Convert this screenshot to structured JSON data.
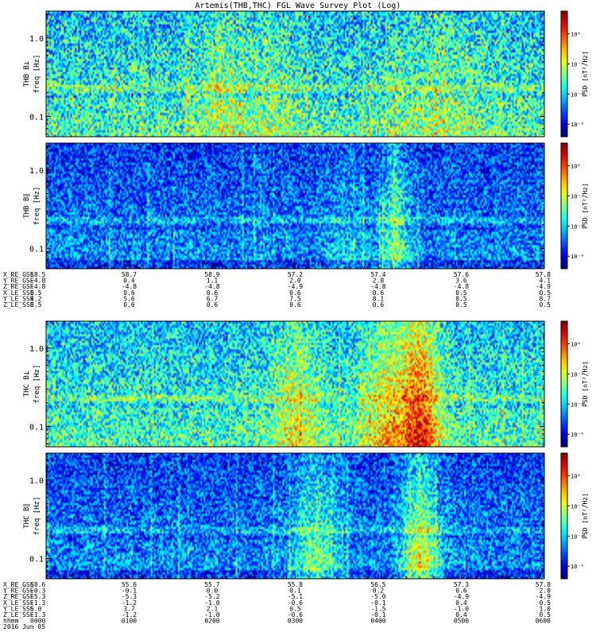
{
  "chart_data": {
    "type": "heatmap",
    "title": "Artemis(THB,THC) FGL Wave Survey Plot (Log)",
    "yscale": "log",
    "colorscale": "jet",
    "grid": false,
    "panels": [
      {
        "id": "thb-bperp",
        "ylabel_top": "THB B⊥",
        "ylabel_bottom": "freq [Hz]",
        "ylim": [
          0.055,
          2.2
        ],
        "yticks": [
          "1.0",
          "0.1"
        ],
        "yticks_values": [
          1.0,
          0.1
        ],
        "colorbar": {
          "label": "PSD [nT²/Hz]",
          "ticks": [
            "10⁰",
            "10⁻²",
            "10⁻⁴",
            "10⁻⁶"
          ]
        },
        "intensity": {
          "base": 0.38,
          "variance": 0.22,
          "bursts": [
            [
              0.35,
              0.05,
              0.15
            ],
            [
              0.45,
              0.05,
              0.1
            ],
            [
              0.78,
              0.1,
              0.1
            ]
          ]
        }
      },
      {
        "id": "thb-bpar",
        "ylabel_top": "THB B∥",
        "ylabel_bottom": "freq [Hz]",
        "ylim": [
          0.055,
          2.2
        ],
        "yticks": [
          "1.0",
          "0.1"
        ],
        "yticks_values": [
          1.0,
          0.1
        ],
        "colorbar": {
          "label": "PSD [nT²/Hz]",
          "ticks": [
            "10⁰",
            "10⁻²",
            "10⁻⁴",
            "10⁻⁶"
          ]
        },
        "intensity": {
          "base": 0.22,
          "variance": 0.18,
          "bursts": [
            [
              0.7,
              0.03,
              0.25
            ],
            [
              0.6,
              0.04,
              0.1
            ]
          ]
        }
      },
      {
        "id": "thc-bperp",
        "ylabel_top": "THC B⊥",
        "ylabel_bottom": "freq [Hz]",
        "ylim": [
          0.055,
          2.2
        ],
        "yticks": [
          "1.0",
          "0.1"
        ],
        "yticks_values": [
          1.0,
          0.1
        ],
        "colorbar": {
          "label": "PSD [nT²/Hz]",
          "ticks": [
            "10⁰",
            "10⁻²",
            "10⁻⁴",
            "10⁻⁶"
          ]
        },
        "intensity": {
          "base": 0.38,
          "variance": 0.2,
          "bursts": [
            [
              0.75,
              0.04,
              0.45
            ],
            [
              0.68,
              0.05,
              0.25
            ],
            [
              0.5,
              0.05,
              0.2
            ]
          ]
        }
      },
      {
        "id": "thc-bpar",
        "ylabel_top": "THC B∥",
        "ylabel_bottom": "freq [Hz]",
        "ylim": [
          0.055,
          2.2
        ],
        "yticks": [
          "1.0",
          "0.1"
        ],
        "yticks_values": [
          1.0,
          0.1
        ],
        "colorbar": {
          "label": "PSD [nT²/Hz]",
          "ticks": [
            "10⁰",
            "10⁻²",
            "10⁻⁴",
            "10⁻⁶"
          ]
        },
        "intensity": {
          "base": 0.22,
          "variance": 0.18,
          "bursts": [
            [
              0.75,
              0.04,
              0.35
            ],
            [
              0.54,
              0.05,
              0.25
            ]
          ]
        }
      }
    ],
    "ephemeris": [
      {
        "id": "thb",
        "rows": [
          {
            "label": "X_RE_GSE",
            "values": [
              "58.5",
              "58.7",
              "58.9",
              "57.2",
              "57.4",
              "57.6",
              "57.8"
            ]
          },
          {
            "label": "Y_RE_GSE",
            "values": [
              "-4.8",
              "0.4",
              "1.1",
              "2.0",
              "2.8",
              "3.6",
              "4.1"
            ]
          },
          {
            "label": "Z_RE_GSE",
            "values": [
              "-4.8",
              "-4.8",
              "-4.8",
              "-4.9",
              "-4.8",
              "-4.8",
              "-4.9"
            ]
          },
          {
            "label": "X_LE_SSE",
            "values": [
              "0.5",
              "0.6",
              "0.6",
              "0.6",
              "0.6",
              "0.5",
              "0.5"
            ]
          },
          {
            "label": "Y_LE_SSE",
            "values": [
              "4.2",
              "5.6",
              "6.7",
              "7.5",
              "8.1",
              "8.5",
              "8.7"
            ]
          },
          {
            "label": "Z_LE_SSE",
            "values": [
              "0.5",
              "0.6",
              "0.6",
              "0.6",
              "0.6",
              "0.5",
              "0.5"
            ]
          }
        ]
      },
      {
        "id": "thc",
        "rows": [
          {
            "label": "X_RE_GSE",
            "values": [
              "58.6",
              "55.6",
              "55.7",
              "55.8",
              "56.5",
              "57.3",
              "57.8"
            ]
          },
          {
            "label": "Y_RE_GSE",
            "values": [
              "-0.3",
              "-0.1",
              "0.0",
              "0.1",
              "0.2",
              "0.6",
              "2.0"
            ]
          },
          {
            "label": "Z_RE_GSE",
            "values": [
              "-5.3",
              "-5.3",
              "-5.2",
              "-5.1",
              "-5.0",
              "-4.9",
              "-4.9"
            ]
          },
          {
            "label": "X_LE_SSE",
            "values": [
              "-1.3",
              "-1.2",
              "-1.0",
              "-0.6",
              "-0.1",
              "0.4",
              "0.5"
            ]
          },
          {
            "label": "Y_LE_SSE",
            "values": [
              "5.0",
              "3.7",
              "2.1",
              "0.5",
              "-1.5",
              "-1.0",
              "1.0"
            ]
          },
          {
            "label": "Z_LE_SSE",
            "values": [
              "-1.3",
              "-1.2",
              "-1.0",
              "-0.6",
              "-0.1",
              "0.4",
              "0.5"
            ]
          }
        ],
        "time": {
          "label": "hhmm",
          "values": [
            "0000",
            "0100",
            "0200",
            "0300",
            "0400",
            "0500",
            "0600"
          ]
        },
        "date": "2016 Jun 05"
      }
    ]
  }
}
